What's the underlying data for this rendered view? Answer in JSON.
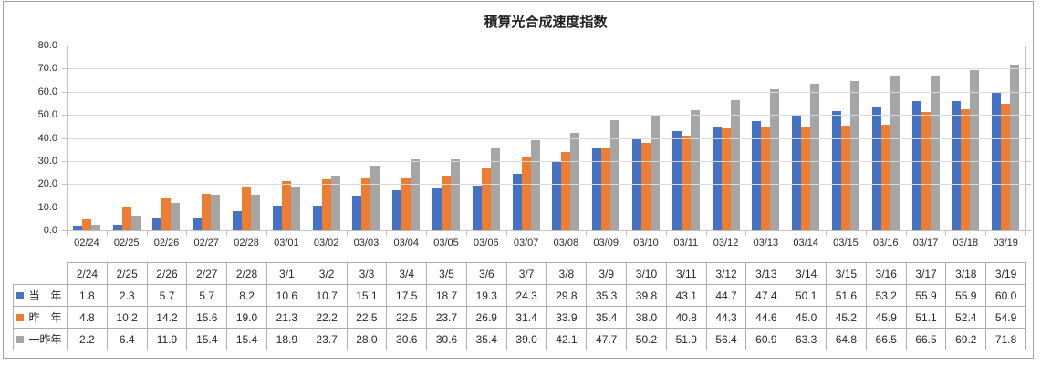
{
  "chart_data": {
    "type": "bar",
    "title": "積算光合成速度指数",
    "categories": [
      "02/24",
      "02/25",
      "02/26",
      "02/27",
      "02/28",
      "03/01",
      "03/02",
      "03/03",
      "03/04",
      "03/05",
      "03/06",
      "03/07",
      "03/08",
      "03/09",
      "03/10",
      "03/11",
      "03/12",
      "03/13",
      "03/14",
      "03/15",
      "03/16",
      "03/17",
      "03/18",
      "03/19"
    ],
    "series": [
      {
        "id": "this-year",
        "name": "当　年",
        "color": "#4472C4",
        "values": [
          1.8,
          2.3,
          5.7,
          5.7,
          8.2,
          10.6,
          10.7,
          15.1,
          17.5,
          18.7,
          19.3,
          24.3,
          29.8,
          35.3,
          39.8,
          43.1,
          44.7,
          47.4,
          50.1,
          51.6,
          53.2,
          55.9,
          55.9,
          60.0
        ]
      },
      {
        "id": "last-year",
        "name": "昨　年",
        "color": "#ED7D31",
        "values": [
          4.8,
          10.2,
          14.2,
          15.6,
          19.0,
          21.3,
          22.2,
          22.5,
          22.5,
          23.7,
          26.9,
          31.4,
          33.9,
          35.4,
          38.0,
          40.8,
          44.3,
          44.6,
          45.0,
          45.2,
          45.9,
          51.1,
          52.4,
          54.9
        ]
      },
      {
        "id": "two-years-ago",
        "name": "一昨年",
        "color": "#A5A5A5",
        "values": [
          2.2,
          6.4,
          11.9,
          15.4,
          15.4,
          18.9,
          23.7,
          28.0,
          30.6,
          30.6,
          35.4,
          39.0,
          42.1,
          47.7,
          50.2,
          51.9,
          56.4,
          60.9,
          63.3,
          64.8,
          66.5,
          66.5,
          69.2,
          71.8
        ]
      }
    ],
    "xlabel": "",
    "ylabel": "",
    "ylim": [
      0,
      80
    ],
    "ytick_step": 10,
    "ytick_labels": [
      "0.0",
      "10.0",
      "20.0",
      "30.0",
      "40.0",
      "50.0",
      "60.0",
      "70.0",
      "80.0"
    ],
    "grid": true,
    "gridlines_over_bars": true,
    "legend_position": "data-table-left"
  },
  "data_table": {
    "column_headers": [
      "2/24",
      "2/25",
      "2/26",
      "2/27",
      "2/28",
      "3/1",
      "3/2",
      "3/3",
      "3/4",
      "3/5",
      "3/6",
      "3/7",
      "3/8",
      "3/9",
      "3/10",
      "3/11",
      "3/12",
      "3/13",
      "3/14",
      "3/15",
      "3/16",
      "3/17",
      "3/18",
      "3/19"
    ],
    "row_labels": [
      "当　年",
      "昨　年",
      "一昨年"
    ],
    "value_decimals": 1
  },
  "colors": {
    "series_blue": "#4472C4",
    "series_orange": "#ED7D31",
    "series_gray": "#A5A5A5",
    "gridline": "#D9D9D9",
    "axis_line": "#BFBFBF",
    "table_border": "#ACACAC",
    "text": "#262626",
    "frame_border": "#A3A3A3"
  }
}
